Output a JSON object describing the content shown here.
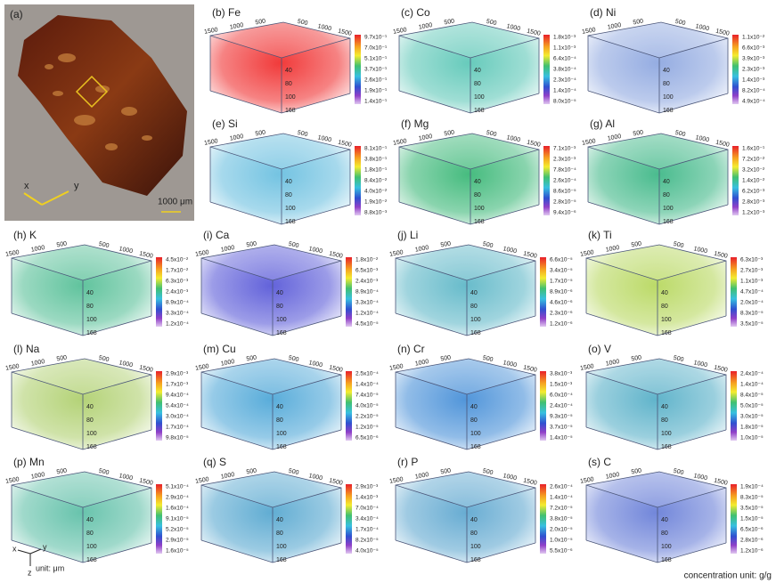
{
  "photo": {
    "label": "(a)",
    "axes": [
      "x",
      "y"
    ],
    "scale": "1000 μm"
  },
  "cube_axis": {
    "left": [
      "1500",
      "1000",
      "500"
    ],
    "right": [
      "500",
      "1000",
      "1500"
    ],
    "depth": [
      "40",
      "80",
      "100",
      "168"
    ]
  },
  "panels": [
    {
      "label": "(b) Fe",
      "tint": "#f03030",
      "colorbar": [
        "9.7x10⁻¹",
        "7.0x10⁻¹",
        "5.1x10⁻¹",
        "3.7x10⁻¹",
        "2.6x10⁻¹",
        "1.9x10⁻¹",
        "1.4x10⁻¹"
      ]
    },
    {
      "label": "(c) Co",
      "tint": "#5fc8b8",
      "colorbar": [
        "1.8x10⁻³",
        "1.1x10⁻³",
        "6.4x10⁻⁴",
        "3.8x10⁻⁴",
        "2.3x10⁻⁴",
        "1.4x10⁻⁴",
        "8.0x10⁻⁵"
      ]
    },
    {
      "label": "(d) Ni",
      "tint": "#8fa8e0",
      "colorbar": [
        "1.1x10⁻²",
        "6.6x10⁻³",
        "3.9x10⁻³",
        "2.3x10⁻³",
        "1.4x10⁻³",
        "8.2x10⁻⁴",
        "4.9x10⁻⁴"
      ]
    },
    {
      "label": "(e) Si",
      "tint": "#6cc0e0",
      "colorbar": [
        "8.1x10⁻¹",
        "3.8x10⁻¹",
        "1.8x10⁻¹",
        "8.4x10⁻²",
        "4.0x10⁻²",
        "1.9x10⁻²",
        "8.8x10⁻³"
      ]
    },
    {
      "label": "(f) Mg",
      "tint": "#3cb878",
      "colorbar": [
        "7.1x10⁻³",
        "2.3x10⁻³",
        "7.8x10⁻⁴",
        "2.6x10⁻⁴",
        "8.6x10⁻⁵",
        "2.8x10⁻⁵",
        "9.4x10⁻⁶"
      ]
    },
    {
      "label": "(g) Al",
      "tint": "#40b888",
      "colorbar": [
        "1.6x10⁻¹",
        "7.2x10⁻²",
        "3.2x10⁻²",
        "1.4x10⁻²",
        "6.2x10⁻³",
        "2.8x10⁻³",
        "1.2x10⁻³"
      ]
    },
    {
      "label": "(h) K",
      "tint": "#58c098",
      "colorbar": [
        "4.5x10⁻²",
        "1.7x10⁻²",
        "6.3x10⁻³",
        "2.4x10⁻³",
        "8.9x10⁻⁴",
        "3.3x10⁻⁴",
        "1.2x10⁻⁴"
      ]
    },
    {
      "label": "(i) Ca",
      "tint": "#5a5ad8",
      "colorbar": [
        "1.8x10⁻²",
        "6.5x10⁻³",
        "2.4x10⁻³",
        "8.9x10⁻⁴",
        "3.3x10⁻⁴",
        "1.2x10⁻⁴",
        "4.5x10⁻⁵"
      ]
    },
    {
      "label": "(j) Li",
      "tint": "#60b8c8",
      "colorbar": [
        "6.6x10⁻⁵",
        "3.4x10⁻⁵",
        "1.7x10⁻⁵",
        "8.9x10⁻⁶",
        "4.6x10⁻⁶",
        "2.3x10⁻⁶",
        "1.2x10⁻⁶"
      ]
    },
    {
      "label": "(k) Ti",
      "tint": "#b8d860",
      "colorbar": [
        "6.3x10⁻³",
        "2.7x10⁻³",
        "1.1x10⁻³",
        "4.7x10⁻⁴",
        "2.0x10⁻⁴",
        "8.3x10⁻⁵",
        "3.5x10⁻⁵"
      ]
    },
    {
      "label": "(l) Na",
      "tint": "#b0d070",
      "colorbar": [
        "2.9x10⁻³",
        "1.7x10⁻³",
        "9.4x10⁻⁴",
        "5.4x10⁻⁴",
        "3.0x10⁻⁴",
        "1.7x10⁻⁴",
        "9.8x10⁻⁵"
      ]
    },
    {
      "label": "(m) Cu",
      "tint": "#50a8d8",
      "colorbar": [
        "2.5x10⁻⁴",
        "1.4x10⁻⁴",
        "7.4x10⁻⁵",
        "4.0x10⁻⁵",
        "2.2x10⁻⁵",
        "1.2x10⁻⁵",
        "6.5x10⁻⁶"
      ]
    },
    {
      "label": "(n) Cr",
      "tint": "#4890d8",
      "colorbar": [
        "3.8x10⁻³",
        "1.5x10⁻³",
        "6.0x10⁻⁴",
        "2.4x10⁻⁴",
        "9.3x10⁻⁵",
        "3.7x10⁻⁵",
        "1.4x10⁻⁵"
      ]
    },
    {
      "label": "(o) V",
      "tint": "#58b0c8",
      "colorbar": [
        "2.4x10⁻⁴",
        "1.4x10⁻⁴",
        "8.4x10⁻⁵",
        "5.0x10⁻⁵",
        "3.0x10⁻⁵",
        "1.8x10⁻⁵",
        "1.0x10⁻⁵"
      ]
    },
    {
      "label": "(p) Mn",
      "tint": "#60c0a8",
      "colorbar": [
        "5.1x10⁻⁴",
        "2.9x10⁻⁴",
        "1.6x10⁻⁴",
        "9.1x10⁻⁵",
        "5.2x10⁻⁵",
        "2.9x10⁻⁵",
        "1.6x10⁻⁵"
      ]
    },
    {
      "label": "(q) S",
      "tint": "#58a8d0",
      "colorbar": [
        "2.9x10⁻³",
        "1.4x10⁻³",
        "7.0x10⁻⁴",
        "3.4x10⁻⁴",
        "1.7x10⁻⁴",
        "8.2x10⁻⁵",
        "4.0x10⁻⁵"
      ]
    },
    {
      "label": "(r) P",
      "tint": "#60a8d0",
      "colorbar": [
        "2.6x10⁻⁴",
        "1.4x10⁻⁴",
        "7.2x10⁻⁵",
        "3.8x10⁻⁵",
        "2.0x10⁻⁵",
        "1.0x10⁻⁵",
        "5.5x10⁻⁶"
      ]
    },
    {
      "label": "(s) C",
      "tint": "#6a80d8",
      "colorbar": [
        "1.9x10⁻⁴",
        "8.3x10⁻⁵",
        "3.5x10⁻⁵",
        "1.5x10⁻⁵",
        "6.5x10⁻⁶",
        "2.8x10⁻⁶",
        "1.2x10⁻⁶"
      ]
    }
  ],
  "axes_key": {
    "x": "x",
    "y": "y",
    "z": "z",
    "unit": "unit: μm"
  },
  "footer": "concentration unit: g/g"
}
